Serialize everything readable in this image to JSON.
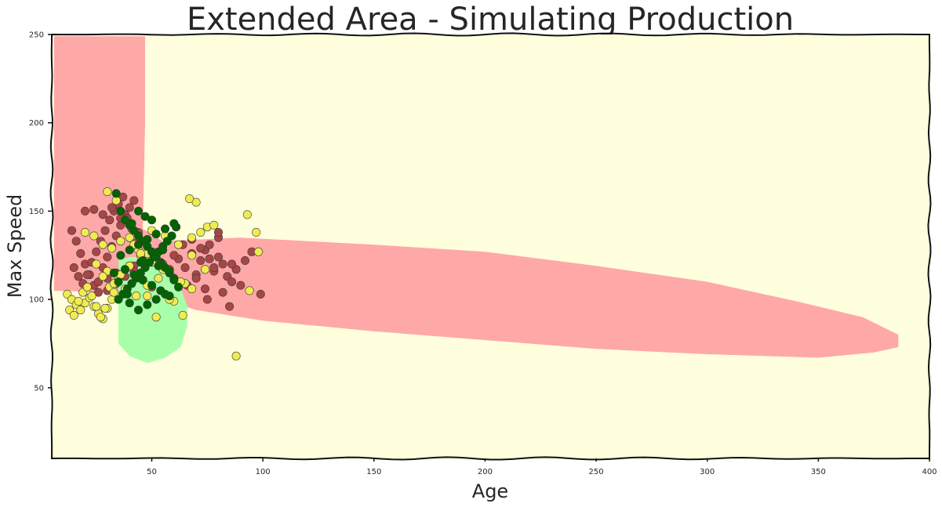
{
  "chart_data": {
    "type": "scatter",
    "title": "Extended Area - Simulating Production",
    "xlabel": "Age",
    "ylabel": "Max Speed",
    "xlim": [
      5,
      400
    ],
    "ylim": [
      10,
      250
    ],
    "x_ticks": [
      50,
      100,
      150,
      200,
      250,
      300,
      350,
      400
    ],
    "y_ticks": [
      50,
      100,
      150,
      200,
      250
    ],
    "grid": false,
    "colors": {
      "background_region": "#ffffdd",
      "red_region": "#ffa8a8",
      "green_region": "#a9ffa9",
      "points_red": "#a84646",
      "points_yellow": "#f0ec50",
      "points_green": "#006400"
    },
    "regions": [
      {
        "class": "red",
        "polygon": [
          [
            6,
            105
          ],
          [
            6,
            249
          ],
          [
            47,
            249
          ],
          [
            47,
            200
          ],
          [
            46,
            140
          ],
          [
            55,
            133
          ],
          [
            90,
            135
          ],
          [
            150,
            131
          ],
          [
            200,
            127
          ],
          [
            250,
            119
          ],
          [
            300,
            110
          ],
          [
            340,
            99
          ],
          [
            370,
            90
          ],
          [
            386,
            80
          ],
          [
            386,
            73
          ],
          [
            375,
            70
          ],
          [
            350,
            67
          ],
          [
            300,
            69
          ],
          [
            250,
            72
          ],
          [
            200,
            77
          ],
          [
            150,
            82
          ],
          [
            100,
            88
          ],
          [
            70,
            94
          ],
          [
            55,
            100
          ],
          [
            40,
            103
          ],
          [
            30,
            104
          ]
        ]
      },
      {
        "class": "green",
        "polygon": [
          [
            35,
            122
          ],
          [
            35,
            75
          ],
          [
            40,
            68
          ],
          [
            48,
            64
          ],
          [
            56,
            67
          ],
          [
            63,
            73
          ],
          [
            66,
            85
          ],
          [
            66,
            96
          ],
          [
            62,
            110
          ],
          [
            56,
            120
          ],
          [
            48,
            124
          ],
          [
            40,
            124
          ]
        ]
      }
    ],
    "series": [
      {
        "class": "red",
        "x": [
          14,
          16,
          18,
          20,
          22,
          24,
          26,
          28,
          30,
          32,
          34,
          36,
          38,
          40,
          42,
          15,
          17,
          19,
          21,
          23,
          25,
          27,
          29,
          31,
          33,
          35,
          37,
          39,
          41,
          43,
          20,
          24,
          28,
          32,
          36,
          40,
          44,
          26,
          30,
          34,
          38,
          42,
          46,
          30,
          34,
          38,
          42,
          46,
          50,
          55,
          58,
          62,
          65,
          68,
          70,
          72,
          74,
          76,
          78,
          80,
          82,
          84,
          86,
          88,
          90,
          92,
          95,
          60,
          64,
          68,
          72,
          76,
          80,
          66,
          70,
          74,
          78,
          82,
          86,
          99,
          80,
          75,
          85
        ],
        "y": [
          139,
          133,
          126,
          120,
          114,
          108,
          104,
          118,
          124,
          130,
          136,
          142,
          148,
          152,
          156,
          118,
          113,
          109,
          114,
          121,
          127,
          133,
          139,
          145,
          150,
          154,
          158,
          146,
          140,
          132,
          150,
          151,
          148,
          152,
          146,
          143,
          138,
          110,
          112,
          115,
          117,
          119,
          122,
          105,
          109,
          113,
          116,
          111,
          107,
          120,
          117,
          123,
          118,
          126,
          114,
          122,
          128,
          131,
          116,
          124,
          120,
          113,
          110,
          117,
          108,
          122,
          127,
          125,
          131,
          134,
          129,
          123,
          135,
          108,
          112,
          106,
          118,
          104,
          120,
          103,
          138,
          100,
          96
        ]
      },
      {
        "class": "yellow",
        "x": [
          12,
          14,
          16,
          18,
          20,
          22,
          24,
          26,
          28,
          30,
          32,
          13,
          15,
          17,
          19,
          21,
          23,
          25,
          27,
          29,
          31,
          33,
          20,
          24,
          28,
          32,
          36,
          40,
          44,
          48,
          25,
          30,
          35,
          40,
          45,
          50,
          55,
          60,
          65,
          28,
          33,
          38,
          43,
          48,
          53,
          58,
          63,
          68,
          72,
          75,
          78,
          68,
          74,
          62,
          56,
          50,
          45,
          42,
          98,
          97,
          93,
          70,
          68,
          67,
          60,
          52,
          58,
          64,
          88,
          94,
          30,
          34,
          36,
          40,
          48
        ],
        "y": [
          103,
          100,
          97,
          94,
          98,
          101,
          96,
          92,
          89,
          95,
          100,
          94,
          91,
          99,
          104,
          107,
          102,
          96,
          90,
          95,
          107,
          104,
          138,
          136,
          131,
          129,
          133,
          135,
          128,
          126,
          120,
          116,
          113,
          119,
          125,
          121,
          117,
          112,
          109,
          113,
          109,
          106,
          102,
          108,
          112,
          115,
          110,
          106,
          138,
          141,
          142,
          125,
          117,
          131,
          136,
          139,
          126,
          131,
          127,
          138,
          148,
          155,
          135,
          157,
          99,
          90,
          100,
          91,
          68,
          105,
          161,
          156,
          114,
          119,
          102
        ]
      },
      {
        "class": "green",
        "x": [
          34,
          36,
          38,
          40,
          42,
          44,
          46,
          48,
          50,
          52,
          54,
          56,
          58,
          60,
          35,
          37,
          39,
          41,
          43,
          45,
          47,
          49,
          51,
          53,
          55,
          57,
          59,
          61,
          36,
          40,
          44,
          48,
          52,
          56,
          60,
          38,
          42,
          46,
          50,
          54,
          58,
          40,
          44,
          48,
          52,
          56,
          35,
          45,
          55,
          60,
          33,
          62,
          47,
          50,
          44,
          41,
          58,
          53,
          46,
          39
        ],
        "y": [
          160,
          150,
          145,
          142,
          139,
          136,
          133,
          130,
          127,
          124,
          121,
          118,
          115,
          112,
          100,
          103,
          106,
          109,
          112,
          115,
          118,
          121,
          124,
          127,
          130,
          133,
          136,
          141,
          125,
          128,
          131,
          134,
          137,
          140,
          143,
          117,
          114,
          111,
          108,
          105,
          102,
          98,
          94,
          97,
          100,
          103,
          110,
          121,
          128,
          111,
          115,
          107,
          147,
          145,
          150,
          143,
          116,
          119,
          122,
          103
        ]
      }
    ]
  }
}
